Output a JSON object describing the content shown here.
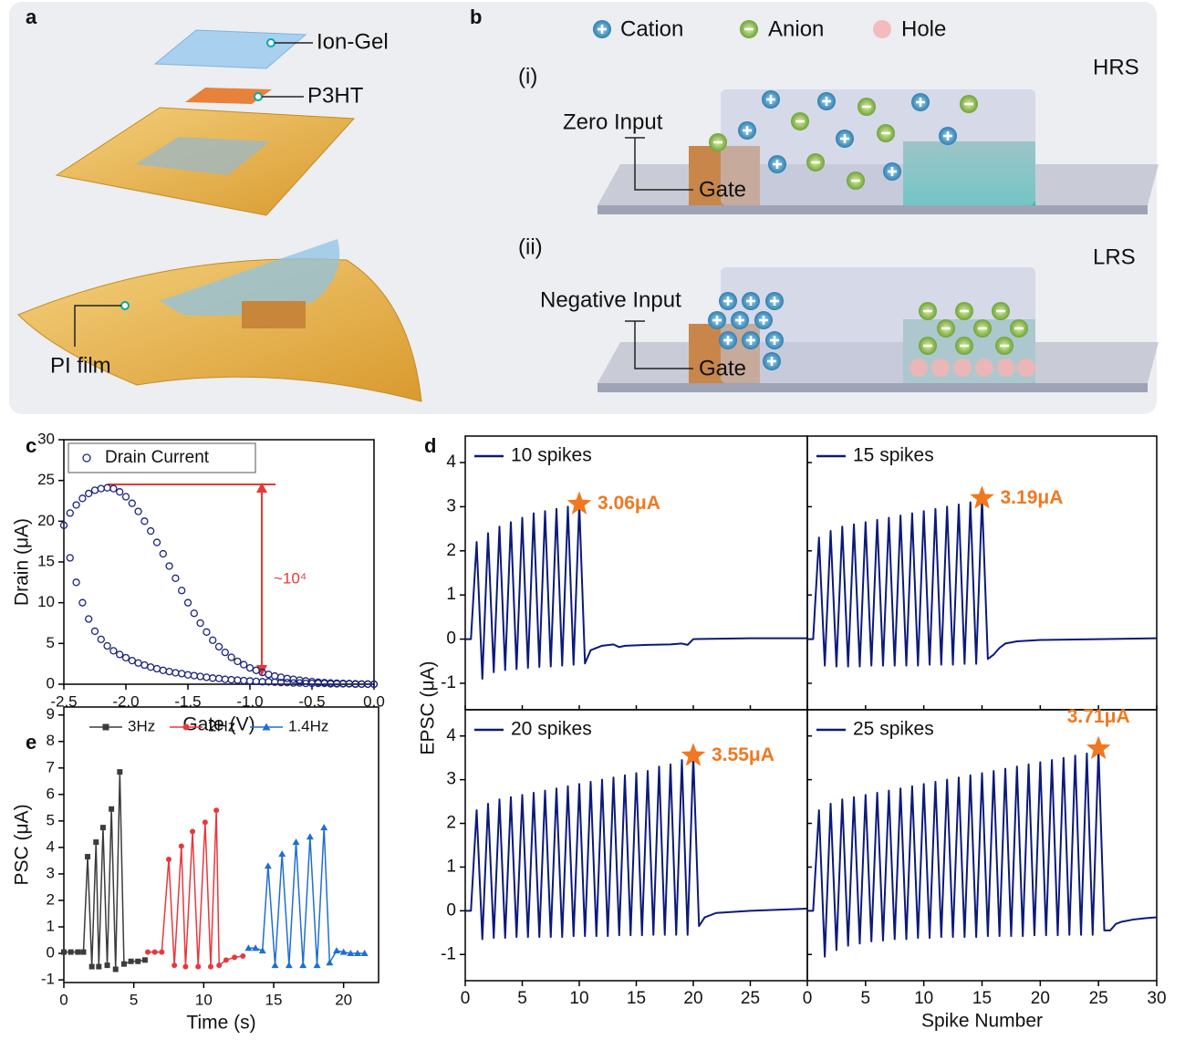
{
  "panel_a": {
    "label": "a",
    "layers": [
      "Ion-Gel",
      "P3HT"
    ],
    "substrate": "PI film"
  },
  "panel_b": {
    "label": "b",
    "legend": [
      "Cation",
      "Anion",
      "Hole"
    ],
    "states": [
      {
        "index": "(i)",
        "name": "HRS",
        "input": "Zero Input",
        "gate": "Gate"
      },
      {
        "index": "(ii)",
        "name": "LRS",
        "input": "Negative Input",
        "gate": "Gate"
      }
    ]
  },
  "chart_data": [
    {
      "type": "scatter",
      "panel_label": "c",
      "xlabel": "Gate (V)",
      "ylabel": "Drain (μA)",
      "xlim": [
        -2.5,
        0
      ],
      "ylim": [
        0,
        30
      ],
      "xticks": [
        -2.5,
        {
          "value": -2,
          "label": "-2.0"
        },
        -1.5,
        {
          "value": -1,
          "label": "-1.0"
        },
        -0.5,
        {
          "value": 0,
          "label": "0.0"
        }
      ],
      "yticks": [
        0,
        5,
        10,
        15,
        20,
        25,
        30
      ],
      "legend": "upper left",
      "annotation": "~10⁴",
      "series": [
        {
          "name": "Drain Current",
          "color": "#1a237e",
          "marker": "open-circle",
          "x": [
            0,
            -0.05,
            -0.1,
            -0.15,
            -0.2,
            -0.25,
            -0.3,
            -0.35,
            -0.4,
            -0.45,
            -0.5,
            -0.55,
            -0.6,
            -0.65,
            -0.7,
            -0.75,
            -0.8,
            -0.85,
            -0.9,
            -0.95,
            -1,
            -1.05,
            -1.1,
            -1.15,
            -1.2,
            -1.25,
            -1.3,
            -1.35,
            -1.4,
            -1.45,
            -1.5,
            -1.55,
            -1.6,
            -1.65,
            -1.7,
            -1.75,
            -1.8,
            -1.85,
            -1.9,
            -1.95,
            -2,
            -2.05,
            -2.1,
            -2.15,
            -2.2,
            -2.25,
            -2.3,
            -2.35,
            -2.4,
            -2.45,
            -2.5,
            -2.45,
            -2.4,
            -2.35,
            -2.3,
            -2.25,
            -2.2,
            -2.15,
            -2.1,
            -2.05,
            -2,
            -1.95,
            -1.9,
            -1.85,
            -1.8,
            -1.75,
            -1.7,
            -1.65,
            -1.6,
            -1.55,
            -1.5,
            -1.45,
            -1.4,
            -1.35,
            -1.3,
            -1.25,
            -1.2,
            -1.15,
            -1.1,
            -1.05,
            -1,
            -0.95,
            -0.9,
            -0.85,
            -0.8,
            -0.75,
            -0.7,
            -0.65,
            -0.6,
            -0.55,
            -0.5,
            -0.45,
            -0.4,
            -0.35,
            -0.3,
            -0.25,
            -0.2,
            -0.15,
            -0.1,
            -0.05,
            0
          ],
          "y": [
            0,
            0,
            0,
            0,
            0.05,
            0.05,
            0.05,
            0.05,
            0.1,
            0.1,
            0.1,
            0.1,
            0.15,
            0.15,
            0.2,
            0.2,
            0.25,
            0.3,
            0.3,
            0.35,
            0.4,
            0.45,
            0.5,
            0.55,
            0.6,
            0.7,
            0.75,
            0.85,
            0.95,
            1.05,
            1.15,
            1.3,
            1.4,
            1.55,
            1.7,
            1.9,
            2.1,
            2.35,
            2.6,
            2.9,
            3.25,
            3.65,
            4.1,
            4.7,
            5.5,
            6.5,
            8,
            10,
            12.5,
            15.5,
            19.5,
            21,
            22,
            22.8,
            23.4,
            23.8,
            24,
            24.1,
            24,
            23.6,
            23,
            22.2,
            21.2,
            20,
            18.8,
            17.4,
            16,
            14.5,
            13,
            11.5,
            10,
            8.7,
            7.5,
            6.4,
            5.4,
            4.6,
            3.9,
            3.3,
            2.8,
            2.4,
            2,
            1.7,
            1.45,
            1.2,
            1,
            0.85,
            0.7,
            0.6,
            0.5,
            0.4,
            0.32,
            0.25,
            0.2,
            0.15,
            0.12,
            0.1,
            0.08,
            0.05,
            0.03,
            0.02,
            0
          ]
        }
      ]
    },
    {
      "type": "line",
      "panel_label": "d",
      "ylabel": "EPSC (μA)",
      "xlim": [
        0,
        30
      ],
      "ylim": [
        -1.6,
        4.6
      ],
      "xticks": [
        0,
        5,
        10,
        15,
        20,
        25
      ],
      "yticks": [
        -1,
        0,
        1,
        2,
        3,
        4
      ],
      "legend": "upper left",
      "series": [
        {
          "name": "10 spikes",
          "color": "#0b1a7a",
          "x": [
            0,
            0.5,
            1,
            1.5,
            2,
            2.5,
            3,
            3.5,
            4,
            4.5,
            5,
            5.5,
            6,
            6.5,
            7,
            7.5,
            8,
            8.5,
            9,
            9.5,
            10,
            10.5,
            11,
            12,
            13,
            13.5,
            14,
            16,
            18,
            19,
            19.5,
            20,
            25,
            30
          ],
          "y": [
            0,
            0,
            2.2,
            -0.9,
            2.4,
            -0.75,
            2.55,
            -0.7,
            2.65,
            -0.68,
            2.75,
            -0.65,
            2.85,
            -0.63,
            2.9,
            -0.62,
            2.95,
            -0.6,
            3,
            -0.58,
            3.06,
            -0.55,
            -0.25,
            -0.15,
            -0.12,
            -0.18,
            -0.15,
            -0.13,
            -0.12,
            -0.1,
            -0.13,
            0,
            0.02,
            0.02
          ]
        }
      ],
      "annotations": [
        {
          "text": "3.06μA",
          "x": 10,
          "y": 3.06
        }
      ]
    },
    {
      "type": "line",
      "xlim": [
        0,
        30
      ],
      "ylim": [
        -1.6,
        4.6
      ],
      "xticks": [
        0,
        5,
        10,
        15,
        20,
        25,
        30
      ],
      "yticks": [
        -1,
        0,
        1,
        2,
        3,
        4
      ],
      "legend": "upper left",
      "series": [
        {
          "name": "15 spikes",
          "color": "#0b1a7a",
          "x": [
            0,
            0.5,
            1,
            1.5,
            2,
            2.5,
            3,
            3.5,
            4,
            4.5,
            5,
            5.5,
            6,
            6.5,
            7,
            7.5,
            8,
            8.5,
            9,
            9.5,
            10,
            10.5,
            11,
            11.5,
            12,
            12.5,
            13,
            13.5,
            14,
            14.5,
            15,
            15.5,
            16,
            16.5,
            17,
            18,
            20,
            25,
            30
          ],
          "y": [
            0,
            0,
            2.3,
            -0.6,
            2.45,
            -0.62,
            2.55,
            -0.62,
            2.6,
            -0.62,
            2.65,
            -0.6,
            2.7,
            -0.6,
            2.75,
            -0.6,
            2.8,
            -0.6,
            2.85,
            -0.6,
            2.9,
            -0.58,
            2.95,
            -0.58,
            3,
            -0.58,
            3.05,
            -0.56,
            3.1,
            -0.56,
            3.19,
            -0.45,
            -0.35,
            -0.2,
            -0.1,
            -0.05,
            -0.02,
            0,
            0.02
          ]
        }
      ],
      "annotations": [
        {
          "text": "3.19μA",
          "x": 15,
          "y": 3.19
        }
      ]
    },
    {
      "type": "line",
      "xlim": [
        0,
        30
      ],
      "ylim": [
        -1.6,
        4.6
      ],
      "xticks": [
        0,
        5,
        10,
        15,
        20,
        25
      ],
      "yticks": [
        -1,
        0,
        1,
        2,
        3,
        4
      ],
      "legend": "upper left",
      "series": [
        {
          "name": "20 spikes",
          "color": "#0b1a7a",
          "x": [
            0,
            0.5,
            1,
            1.5,
            2,
            2.5,
            3,
            3.5,
            4,
            4.5,
            5,
            5.5,
            6,
            6.5,
            7,
            7.5,
            8,
            8.5,
            9,
            9.5,
            10,
            10.5,
            11,
            11.5,
            12,
            12.5,
            13,
            13.5,
            14,
            14.5,
            15,
            15.5,
            16,
            16.5,
            17,
            17.5,
            18,
            18.5,
            19,
            19.5,
            20,
            20.5,
            21,
            22,
            25,
            30
          ],
          "y": [
            0,
            0,
            2.3,
            -0.65,
            2.45,
            -0.62,
            2.55,
            -0.62,
            2.6,
            -0.6,
            2.65,
            -0.6,
            2.7,
            -0.6,
            2.75,
            -0.6,
            2.8,
            -0.6,
            2.85,
            -0.58,
            2.9,
            -0.58,
            2.95,
            -0.58,
            3,
            -0.58,
            3.05,
            -0.56,
            3.1,
            -0.56,
            3.15,
            -0.56,
            3.2,
            -0.55,
            3.3,
            -0.55,
            3.35,
            -0.55,
            3.45,
            -0.55,
            3.55,
            -0.35,
            -0.15,
            -0.05,
            0,
            0.05
          ]
        }
      ],
      "annotations": [
        {
          "text": "3.55μA",
          "x": 20,
          "y": 3.55
        }
      ]
    },
    {
      "type": "line",
      "xlabel": "Spike Number",
      "xlim": [
        0,
        30
      ],
      "ylim": [
        -1.6,
        4.6
      ],
      "xticks": [
        0,
        5,
        10,
        15,
        20,
        25,
        30
      ],
      "yticks": [
        -1,
        0,
        1,
        2,
        3,
        4
      ],
      "legend": "upper left",
      "series": [
        {
          "name": "25 spikes",
          "color": "#0b1a7a",
          "x": [
            0,
            0.5,
            1,
            1.5,
            2,
            2.5,
            3,
            3.5,
            4,
            4.5,
            5,
            5.5,
            6,
            6.5,
            7,
            7.5,
            8,
            8.5,
            9,
            9.5,
            10,
            10.5,
            11,
            11.5,
            12,
            12.5,
            13,
            13.5,
            14,
            14.5,
            15,
            15.5,
            16,
            16.5,
            17,
            17.5,
            18,
            18.5,
            19,
            19.5,
            20,
            20.5,
            21,
            21.5,
            22,
            22.5,
            23,
            23.5,
            24,
            24.5,
            25,
            25.5,
            26,
            26.5,
            27,
            28,
            29,
            30
          ],
          "y": [
            0,
            0,
            2.3,
            -1.05,
            2.45,
            -0.9,
            2.55,
            -0.8,
            2.6,
            -0.75,
            2.65,
            -0.7,
            2.7,
            -0.68,
            2.75,
            -0.65,
            2.8,
            -0.65,
            2.85,
            -0.62,
            2.9,
            -0.62,
            2.95,
            -0.6,
            3,
            -0.6,
            3.05,
            -0.6,
            3.1,
            -0.6,
            3.15,
            -0.58,
            3.2,
            -0.58,
            3.25,
            -0.58,
            3.3,
            -0.58,
            3.35,
            -0.56,
            3.4,
            -0.56,
            3.45,
            -0.56,
            3.5,
            -0.55,
            3.55,
            -0.55,
            3.6,
            -0.55,
            3.71,
            -0.45,
            -0.45,
            -0.3,
            -0.25,
            -0.2,
            -0.17,
            -0.15
          ]
        }
      ],
      "annotations": [
        {
          "text": "3.71μA",
          "x": 25,
          "y": 3.71
        }
      ]
    },
    {
      "type": "line",
      "panel_label": "e",
      "xlabel": "Time (s)",
      "ylabel": "PSC (μA)",
      "xlim": [
        0,
        22.5
      ],
      "ylim": [
        -1.1,
        9.3
      ],
      "xticks": [
        0,
        5,
        10,
        15,
        20
      ],
      "yticks": [
        -1,
        0,
        1,
        2,
        3,
        4,
        5,
        6,
        7,
        8,
        9
      ],
      "legend": "top",
      "series": [
        {
          "name": "3Hz",
          "color": "#3c3c3c",
          "marker": "square",
          "x": [
            0,
            0.5,
            1,
            1.4,
            1.7,
            2,
            2.3,
            2.5,
            2.8,
            3.1,
            3.4,
            3.7,
            4,
            4.3,
            4.8,
            5.3,
            5.8
          ],
          "y": [
            0.05,
            0.05,
            0.05,
            0.05,
            3.65,
            -0.5,
            4.2,
            -0.5,
            4.75,
            -0.45,
            5.45,
            -0.6,
            6.85,
            -0.4,
            -0.3,
            -0.3,
            -0.25
          ]
        },
        {
          "name": "2Hz",
          "color": "#e8383d",
          "marker": "circle",
          "x": [
            6,
            6.5,
            7,
            7.5,
            7.9,
            8.4,
            8.7,
            9.2,
            9.6,
            10.1,
            10.5,
            10.9,
            11.1,
            11.6,
            12.2,
            12.8
          ],
          "y": [
            0.05,
            0.05,
            0.05,
            3.55,
            -0.45,
            4.05,
            -0.5,
            4.6,
            -0.5,
            4.95,
            -0.5,
            5.4,
            -0.45,
            -0.25,
            -0.15,
            -0.1
          ]
        },
        {
          "name": "1.4Hz",
          "color": "#1f6fd1",
          "marker": "triangle",
          "x": [
            13.2,
            13.7,
            14.2,
            14.6,
            15.1,
            15.6,
            16.1,
            16.6,
            17.1,
            17.6,
            18.1,
            18.6,
            19,
            19.5,
            20,
            20.5,
            21,
            21.5
          ],
          "y": [
            0.2,
            0.2,
            0.1,
            3.3,
            -0.45,
            3.75,
            -0.45,
            4.2,
            -0.45,
            4.4,
            -0.45,
            4.75,
            -0.35,
            0.1,
            0.05,
            0,
            0,
            0
          ]
        }
      ]
    }
  ]
}
